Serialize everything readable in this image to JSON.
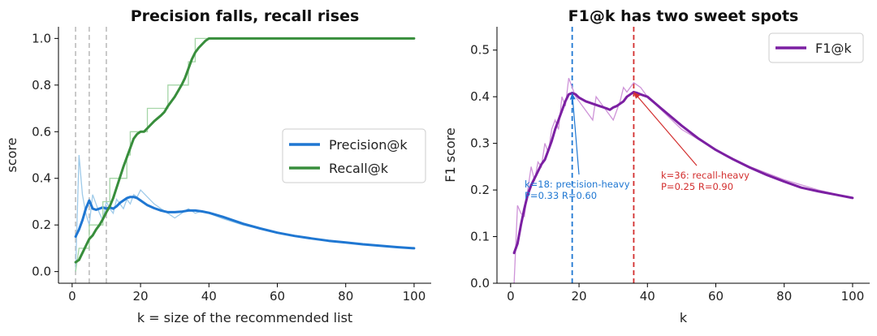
{
  "colors": {
    "precision": "#1f77d2",
    "recall": "#388e3c",
    "f1": "#7b1fa2",
    "precision_raw": "#9ecae9",
    "recall_raw": "#a5d6a7",
    "f1_raw": "#ce93d8",
    "marker_blue": "#1f77d2",
    "marker_red": "#d32f2f",
    "vline_gray": "#bdbdbd"
  },
  "chart_data": [
    {
      "type": "line",
      "title": "Precision falls, recall rises",
      "xlabel": "k = size of the recommended list",
      "ylabel": "score",
      "xlim": [
        -4,
        105
      ],
      "ylim": [
        -0.05,
        1.05
      ],
      "xticks": [
        0,
        20,
        40,
        60,
        80,
        100
      ],
      "yticks": [
        0.0,
        0.2,
        0.4,
        0.6,
        0.8,
        1.0
      ],
      "xtick_labels": [
        "0",
        "20",
        "40",
        "60",
        "80",
        "100"
      ],
      "ytick_labels": [
        "0.0",
        "0.2",
        "0.4",
        "0.6",
        "0.8",
        "1.0"
      ],
      "grid": false,
      "legend_position": "center-right",
      "vlines": [
        1,
        5,
        10
      ],
      "series": [
        {
          "name": "Precision@k",
          "smoothed": [
            [
              1,
              0.15
            ],
            [
              2,
              0.18
            ],
            [
              3,
              0.22
            ],
            [
              4,
              0.27
            ],
            [
              5,
              0.305
            ],
            [
              6,
              0.27
            ],
            [
              7,
              0.265
            ],
            [
              8,
              0.27
            ],
            [
              9,
              0.275
            ],
            [
              10,
              0.27
            ],
            [
              11,
              0.275
            ],
            [
              12,
              0.27
            ],
            [
              13,
              0.28
            ],
            [
              14,
              0.295
            ],
            [
              15,
              0.305
            ],
            [
              16,
              0.315
            ],
            [
              17,
              0.32
            ],
            [
              18,
              0.32
            ],
            [
              19,
              0.315
            ],
            [
              20,
              0.305
            ],
            [
              22,
              0.285
            ],
            [
              24,
              0.272
            ],
            [
              26,
              0.262
            ],
            [
              28,
              0.255
            ],
            [
              30,
              0.255
            ],
            [
              32,
              0.257
            ],
            [
              34,
              0.262
            ],
            [
              36,
              0.262
            ],
            [
              38,
              0.258
            ],
            [
              40,
              0.252
            ],
            [
              44,
              0.235
            ],
            [
              50,
              0.205
            ],
            [
              55,
              0.185
            ],
            [
              60,
              0.167
            ],
            [
              65,
              0.153
            ],
            [
              70,
              0.142
            ],
            [
              75,
              0.132
            ],
            [
              80,
              0.125
            ],
            [
              85,
              0.117
            ],
            [
              90,
              0.111
            ],
            [
              95,
              0.105
            ],
            [
              100,
              0.1
            ]
          ],
          "raw": [
            [
              1,
              0.0
            ],
            [
              2,
              0.5
            ],
            [
              3,
              0.33
            ],
            [
              4,
              0.25
            ],
            [
              5,
              0.2
            ],
            [
              6,
              0.33
            ],
            [
              7,
              0.29
            ],
            [
              8,
              0.25
            ],
            [
              9,
              0.22
            ],
            [
              10,
              0.3
            ],
            [
              11,
              0.27
            ],
            [
              12,
              0.25
            ],
            [
              13,
              0.31
            ],
            [
              14,
              0.29
            ],
            [
              15,
              0.27
            ],
            [
              16,
              0.31
            ],
            [
              17,
              0.29
            ],
            [
              18,
              0.33
            ],
            [
              19,
              0.32
            ],
            [
              20,
              0.35
            ],
            [
              22,
              0.32
            ],
            [
              24,
              0.29
            ],
            [
              26,
              0.27
            ],
            [
              28,
              0.25
            ],
            [
              30,
              0.23
            ],
            [
              32,
              0.25
            ],
            [
              34,
              0.27
            ],
            [
              36,
              0.25
            ],
            [
              38,
              0.26
            ],
            [
              40,
              0.25
            ],
            [
              44,
              0.227
            ],
            [
              50,
              0.2
            ],
            [
              60,
              0.167
            ],
            [
              70,
              0.143
            ],
            [
              80,
              0.125
            ],
            [
              90,
              0.111
            ],
            [
              100,
              0.1
            ]
          ]
        },
        {
          "name": "Recall@k",
          "smoothed": [
            [
              1,
              0.04
            ],
            [
              2,
              0.05
            ],
            [
              3,
              0.08
            ],
            [
              4,
              0.11
            ],
            [
              5,
              0.14
            ],
            [
              6,
              0.155
            ],
            [
              7,
              0.18
            ],
            [
              8,
              0.2
            ],
            [
              9,
              0.225
            ],
            [
              10,
              0.255
            ],
            [
              11,
              0.28
            ],
            [
              12,
              0.315
            ],
            [
              13,
              0.36
            ],
            [
              14,
              0.405
            ],
            [
              15,
              0.45
            ],
            [
              16,
              0.49
            ],
            [
              17,
              0.53
            ],
            [
              18,
              0.57
            ],
            [
              19,
              0.59
            ],
            [
              20,
              0.6
            ],
            [
              21,
              0.6
            ],
            [
              22,
              0.615
            ],
            [
              24,
              0.645
            ],
            [
              26,
              0.67
            ],
            [
              27,
              0.685
            ],
            [
              28,
              0.71
            ],
            [
              30,
              0.75
            ],
            [
              32,
              0.8
            ],
            [
              33,
              0.83
            ],
            [
              34,
              0.87
            ],
            [
              35,
              0.91
            ],
            [
              36,
              0.94
            ],
            [
              37,
              0.96
            ],
            [
              38,
              0.975
            ],
            [
              39,
              0.99
            ],
            [
              40,
              1.0
            ],
            [
              100,
              1.0
            ]
          ],
          "raw": [
            [
              1,
              0.0
            ],
            [
              2,
              0.1
            ],
            [
              5,
              0.1
            ],
            [
              5,
              0.2
            ],
            [
              9,
              0.2
            ],
            [
              9,
              0.3
            ],
            [
              11,
              0.3
            ],
            [
              11,
              0.4
            ],
            [
              16,
              0.4
            ],
            [
              16,
              0.5
            ],
            [
              17,
              0.5
            ],
            [
              17,
              0.6
            ],
            [
              22,
              0.6
            ],
            [
              22,
              0.7
            ],
            [
              28,
              0.7
            ],
            [
              28,
              0.8
            ],
            [
              34,
              0.8
            ],
            [
              34,
              0.9
            ],
            [
              36,
              0.9
            ],
            [
              36,
              1.0
            ],
            [
              100,
              1.0
            ]
          ]
        }
      ]
    },
    {
      "type": "line",
      "title": "F1@k has two sweet spots",
      "xlabel": "k",
      "ylabel": "F1 score",
      "xlim": [
        -4,
        105
      ],
      "ylim": [
        0.0,
        0.55
      ],
      "xticks": [
        0,
        20,
        40,
        60,
        80,
        100
      ],
      "yticks": [
        0.0,
        0.1,
        0.2,
        0.3,
        0.4,
        0.5
      ],
      "xtick_labels": [
        "0",
        "20",
        "40",
        "60",
        "80",
        "100"
      ],
      "ytick_labels": [
        "0.0",
        "0.1",
        "0.2",
        "0.3",
        "0.4",
        "0.5"
      ],
      "grid": false,
      "legend_position": "top-right",
      "vlines": [
        18,
        36
      ],
      "series": [
        {
          "name": "F1@k",
          "smoothed": [
            [
              1,
              0.065
            ],
            [
              2,
              0.085
            ],
            [
              3,
              0.125
            ],
            [
              4,
              0.16
            ],
            [
              5,
              0.19
            ],
            [
              6,
              0.21
            ],
            [
              7,
              0.225
            ],
            [
              8,
              0.24
            ],
            [
              9,
              0.255
            ],
            [
              10,
              0.265
            ],
            [
              11,
              0.285
            ],
            [
              12,
              0.305
            ],
            [
              13,
              0.33
            ],
            [
              14,
              0.35
            ],
            [
              15,
              0.37
            ],
            [
              16,
              0.39
            ],
            [
              17,
              0.405
            ],
            [
              18,
              0.408
            ],
            [
              19,
              0.405
            ],
            [
              20,
              0.398
            ],
            [
              22,
              0.39
            ],
            [
              24,
              0.385
            ],
            [
              26,
              0.38
            ],
            [
              28,
              0.375
            ],
            [
              29,
              0.372
            ],
            [
              30,
              0.377
            ],
            [
              31,
              0.38
            ],
            [
              32,
              0.385
            ],
            [
              33,
              0.39
            ],
            [
              34,
              0.4
            ],
            [
              35,
              0.405
            ],
            [
              36,
              0.41
            ],
            [
              37,
              0.408
            ],
            [
              38,
              0.405
            ],
            [
              40,
              0.4
            ],
            [
              44,
              0.375
            ],
            [
              50,
              0.338
            ],
            [
              55,
              0.31
            ],
            [
              60,
              0.286
            ],
            [
              65,
              0.266
            ],
            [
              70,
              0.248
            ],
            [
              75,
              0.232
            ],
            [
              80,
              0.218
            ],
            [
              85,
              0.205
            ],
            [
              90,
              0.197
            ],
            [
              95,
              0.19
            ],
            [
              100,
              0.183
            ]
          ],
          "raw": [
            [
              1,
              0.0
            ],
            [
              2,
              0.167
            ],
            [
              3,
              0.15
            ],
            [
              4,
              0.143
            ],
            [
              5,
              0.2
            ],
            [
              6,
              0.25
            ],
            [
              7,
              0.22
            ],
            [
              8,
              0.26
            ],
            [
              9,
              0.25
            ],
            [
              10,
              0.3
            ],
            [
              11,
              0.28
            ],
            [
              12,
              0.33
            ],
            [
              13,
              0.35
            ],
            [
              14,
              0.33
            ],
            [
              15,
              0.4
            ],
            [
              16,
              0.38
            ],
            [
              17,
              0.44
            ],
            [
              18,
              0.42
            ],
            [
              19,
              0.4
            ],
            [
              20,
              0.39
            ],
            [
              22,
              0.37
            ],
            [
              24,
              0.35
            ],
            [
              25,
              0.4
            ],
            [
              26,
              0.39
            ],
            [
              28,
              0.37
            ],
            [
              30,
              0.35
            ],
            [
              32,
              0.39
            ],
            [
              33,
              0.42
            ],
            [
              34,
              0.41
            ],
            [
              36,
              0.43
            ],
            [
              38,
              0.42
            ],
            [
              40,
              0.4
            ],
            [
              50,
              0.33
            ],
            [
              60,
              0.286
            ],
            [
              70,
              0.25
            ],
            [
              80,
              0.222
            ],
            [
              90,
              0.2
            ],
            [
              100,
              0.183
            ]
          ]
        }
      ],
      "annotations": [
        {
          "text": "k=18: precision-heavy\nP=0.33  R=0.60",
          "x": 18,
          "y": 0.408,
          "color": "#1f77d2"
        },
        {
          "text": "k=36: recall-heavy\nP=0.25  R=0.90",
          "x": 36,
          "y": 0.41,
          "color": "#d32f2f"
        }
      ]
    }
  ]
}
